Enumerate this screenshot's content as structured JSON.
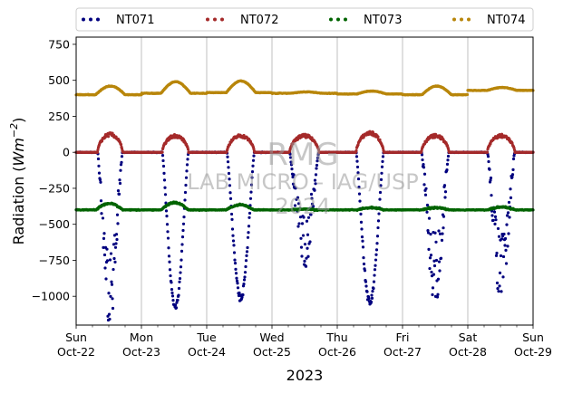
{
  "chart_data": {
    "type": "scatter",
    "xlabel": "2023",
    "ylabel_main": "Radiation (",
    "ylabel_unit": "Wm",
    "ylabel_exp": "−2",
    "ylabel_close": ")",
    "xlim": [
      "2023-10-22",
      "2023-10-29"
    ],
    "ylim": [
      -1200,
      800
    ],
    "yticks": [
      -1000,
      -750,
      -500,
      -250,
      0,
      250,
      500,
      750
    ],
    "ytick_labels": [
      "−1000",
      "−750",
      "−500",
      "−250",
      "0",
      "250",
      "500",
      "750"
    ],
    "xticks": [
      {
        "day": "Sun",
        "date": "Oct-22"
      },
      {
        "day": "Mon",
        "date": "Oct-23"
      },
      {
        "day": "Tue",
        "date": "Oct-24"
      },
      {
        "day": "Wed",
        "date": "Oct-25"
      },
      {
        "day": "Thu",
        "date": "Oct-26"
      },
      {
        "day": "Fri",
        "date": "Oct-27"
      },
      {
        "day": "Sat",
        "date": "Oct-28"
      },
      {
        "day": "Sun",
        "date": "Oct-29"
      }
    ],
    "grid": "vertical",
    "legend_placement": "top",
    "watermark": [
      "RMG",
      "LAB MICRO - IAG/USP",
      "2024"
    ],
    "series": [
      {
        "name": "NT071",
        "color": "#00007f",
        "baseline": 0,
        "daily_min": [
          -1150,
          -1080,
          -1020,
          -780,
          -1050,
          -1010,
          -1010
        ],
        "daytime": [
          [
            0.33,
            0.71
          ],
          [
            0.32,
            0.72
          ],
          [
            0.31,
            0.73
          ],
          [
            0.27,
            0.72
          ],
          [
            0.29,
            0.71
          ],
          [
            0.29,
            0.71
          ],
          [
            0.3,
            0.72
          ]
        ]
      },
      {
        "name": "NT072",
        "color": "#a52a2a",
        "baseline": 0,
        "daily_max": [
          130,
          120,
          120,
          120,
          140,
          120,
          120
        ],
        "daytime": [
          [
            0.33,
            0.71
          ],
          [
            0.32,
            0.72
          ],
          [
            0.31,
            0.73
          ],
          [
            0.27,
            0.72
          ],
          [
            0.29,
            0.71
          ],
          [
            0.29,
            0.71
          ],
          [
            0.3,
            0.72
          ]
        ]
      },
      {
        "name": "NT073",
        "color": "#006400",
        "baseline": -400,
        "daily_max": [
          -355,
          -350,
          -365,
          -395,
          -385,
          -385,
          -380
        ]
      },
      {
        "name": "NT074",
        "color": "#b8860b",
        "baseline": 400,
        "daily_max": [
          460,
          490,
          495,
          420,
          425,
          460,
          450
        ],
        "daily_baseline": [
          400,
          410,
          415,
          410,
          405,
          400,
          430
        ]
      }
    ]
  }
}
